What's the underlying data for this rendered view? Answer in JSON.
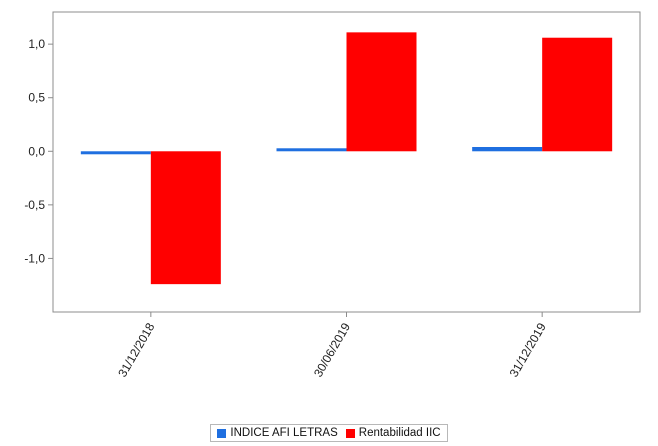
{
  "chart_data": {
    "type": "bar",
    "categories": [
      "31/12/2018",
      "30/06/2019",
      "31/12/2019"
    ],
    "series": [
      {
        "name": "INDICE AFI LETRAS",
        "color": "#1f6fe0",
        "values": [
          -0.02,
          0.02,
          0.04
        ]
      },
      {
        "name": "Rentabilidad IIC",
        "color": "#ff0000",
        "values": [
          -1.24,
          1.11,
          1.06
        ]
      }
    ],
    "y_ticks": [
      "1,0",
      "0,5",
      "0,0",
      "-0,5",
      "-1,0"
    ],
    "y_tick_values": [
      1.0,
      0.5,
      0.0,
      -0.5,
      -1.0
    ],
    "ylim": [
      -1.5,
      1.3
    ],
    "legend_position": "bottom",
    "grid": false
  }
}
